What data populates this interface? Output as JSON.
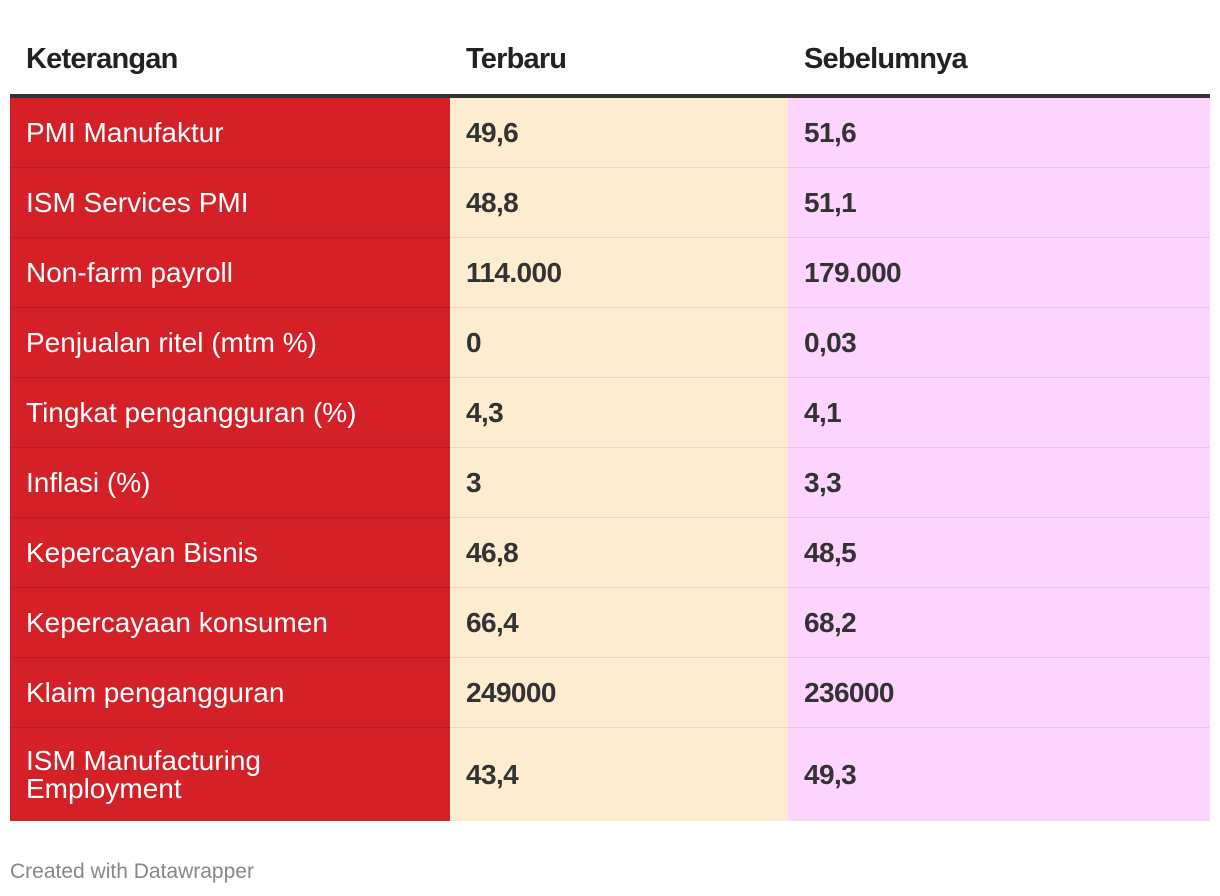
{
  "chart_data": {
    "type": "table",
    "columns": [
      "Keterangan",
      "Terbaru",
      "Sebelumnya"
    ],
    "rows": [
      {
        "label": "PMI Manufaktur",
        "latest": "49,6",
        "previous": "51,6"
      },
      {
        "label": "ISM Services PMI",
        "latest": "48,8",
        "previous": "51,1"
      },
      {
        "label": "Non-farm payroll",
        "latest": "114.000",
        "previous": "179.000"
      },
      {
        "label": "Penjualan ritel (mtm %)",
        "latest": "0",
        "previous": "0,03"
      },
      {
        "label": "Tingkat pengangguran (%)",
        "latest": "4,3",
        "previous": "4,1"
      },
      {
        "label": "Inflasi (%)",
        "latest": "3",
        "previous": "3,3"
      },
      {
        "label": "Kepercayan Bisnis",
        "latest": "46,8",
        "previous": "48,5"
      },
      {
        "label": "Kepercayaan konsumen",
        "latest": "66,4",
        "previous": "68,2"
      },
      {
        "label": "Klaim pengangguran",
        "latest": "249000",
        "previous": "236000"
      },
      {
        "label": "ISM Manufacturing Employment",
        "latest": "43,4",
        "previous": "49,3"
      }
    ]
  },
  "colors": {
    "label_column": "#d42128",
    "latest_column": "#fdecd0",
    "previous_column": "#fdd4fd",
    "header_rule": "#333333"
  },
  "footer": {
    "credit": "Created with Datawrapper"
  }
}
